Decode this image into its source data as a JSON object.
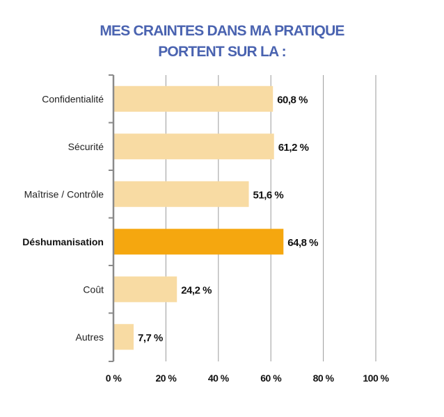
{
  "title": {
    "line1": "MES CRAINTES DANS MA PRATIQUE",
    "line2": "PORTENT SUR LA :"
  },
  "colors": {
    "title": "#4a63b0",
    "bar": "#f8dba3",
    "highlight_bar": "#f5a70f",
    "grid": "#9a9a9a",
    "axis": "#8a8a8a"
  },
  "chart_data": {
    "type": "bar",
    "orientation": "horizontal",
    "categories": [
      "Confidentialité",
      "Sécurité",
      "Maîtrise / Contrôle",
      "Déshumanisation",
      "Coût",
      "Autres"
    ],
    "values": [
      60.8,
      61.2,
      51.6,
      64.8,
      24.2,
      7.7
    ],
    "value_labels": [
      "60,8 %",
      "61,2 %",
      "51,6 %",
      "64,8 %",
      "24,2 %",
      "7,7 %"
    ],
    "highlight": "Déshumanisation",
    "xlim": [
      0,
      100
    ],
    "xticks": [
      0,
      20,
      40,
      60,
      80,
      100
    ],
    "xtick_labels": [
      "0 %",
      "20 %",
      "40 %",
      "60 %",
      "80 %",
      "100 %"
    ],
    "grid": "vertical",
    "legend": "none"
  }
}
